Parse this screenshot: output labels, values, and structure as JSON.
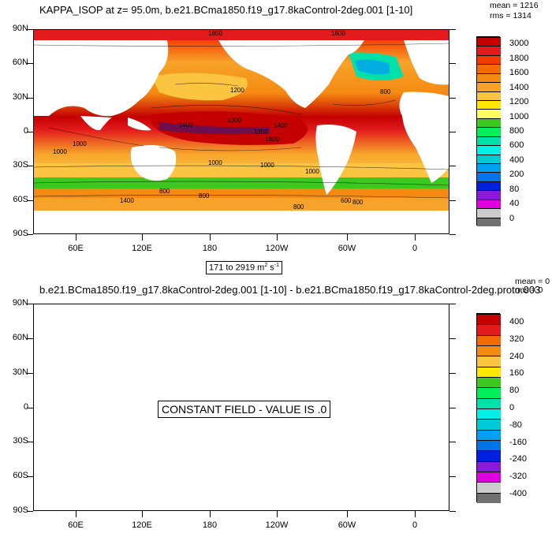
{
  "panels": [
    {
      "title": "KAPPA_ISOP at z=  95.0m, b.e21.BCma1850.f19_g17.8kaControl-2deg.001 [1-10]",
      "mean": "mean = 1216",
      "rms": "rms = 1314",
      "range_label_prefix": "171 to 2919 m",
      "range_label_sup1": "2",
      "range_label_mid": " s",
      "range_label_sup2": "-1",
      "lat_labels": [
        "90N",
        "60N",
        "30N",
        "0",
        "30S",
        "60S",
        "90S"
      ],
      "lon_labels": [
        "60E",
        "120E",
        "180",
        "120W",
        "60W",
        "0"
      ],
      "colorbar_labels": [
        "3000",
        "1800",
        "1600",
        "1400",
        "1200",
        "1000",
        "800",
        "600",
        "400",
        "200",
        "80",
        "40",
        "0"
      ],
      "contour_labels": [
        "1800",
        "1800",
        "1200",
        "800",
        "1000",
        "1400",
        "1000",
        "1200",
        "1800",
        "1400",
        "1000",
        "1000",
        "1000",
        "1000",
        "800",
        "1400",
        "800",
        "600",
        "800",
        "800"
      ]
    },
    {
      "title": "b.e21.BCma1850.f19_g17.8kaControl-2deg.001 [1-10] - b.e21.BCma1850.f19_g17.8kaControl-2deg.proto.003",
      "mean": "mean = 0",
      "rms": "rms = 0",
      "constant_message": "CONSTANT FIELD - VALUE IS .0",
      "lat_labels": [
        "90N",
        "60N",
        "30N",
        "0",
        "30S",
        "60S",
        "90S"
      ],
      "lon_labels": [
        "60E",
        "120E",
        "180",
        "120W",
        "60W",
        "0"
      ],
      "colorbar_labels": [
        "400",
        "320",
        "240",
        "160",
        "80",
        "0",
        "-80",
        "-160",
        "-240",
        "-320",
        "-400"
      ]
    }
  ],
  "colors": {
    "kappa_scale": [
      "#c40000",
      "#e31a1c",
      "#f53a00",
      "#f26b00",
      "#f58a12",
      "#f7a32a",
      "#fbc441",
      "#ffe800",
      "#ffff60",
      "#3cc81f",
      "#00ee59",
      "#00e1a9",
      "#00f0e6",
      "#00c9d8",
      "#00a0f0",
      "#0074e8",
      "#0020e0",
      "#8a1ad8",
      "#e000e0",
      "#cccccc",
      "#707070"
    ],
    "diff_scale": [
      "#c40000",
      "#e31a1c",
      "#f26b00",
      "#f58a12",
      "#fbc441",
      "#ffe800",
      "#3cc81f",
      "#00ee59",
      "#00e1a9",
      "#00f0e6",
      "#00c9d8",
      "#00a0f0",
      "#0074e8",
      "#0020e0",
      "#8a1ad8",
      "#e000e0",
      "#cccccc",
      "#707070"
    ]
  }
}
